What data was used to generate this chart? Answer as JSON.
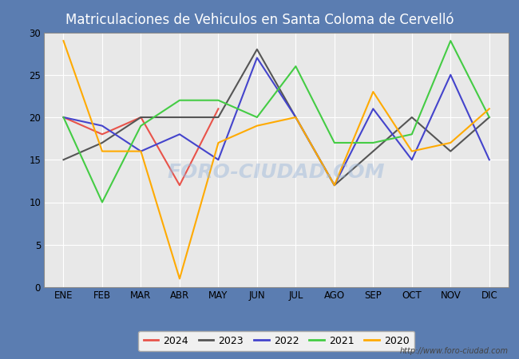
{
  "title": "Matriculaciones de Vehiculos en Santa Coloma de Cervelló",
  "months": [
    "ENE",
    "FEB",
    "MAR",
    "ABR",
    "MAY",
    "JUN",
    "JUL",
    "AGO",
    "SEP",
    "OCT",
    "NOV",
    "DIC"
  ],
  "series": {
    "2024": [
      20,
      18,
      20,
      12,
      21,
      null,
      null,
      null,
      null,
      null,
      null,
      null
    ],
    "2023": [
      15,
      17,
      20,
      20,
      20,
      28,
      20,
      12,
      16,
      20,
      16,
      20
    ],
    "2022": [
      20,
      19,
      16,
      18,
      15,
      27,
      20,
      12,
      21,
      15,
      25,
      15
    ],
    "2021": [
      20,
      10,
      19,
      22,
      22,
      20,
      26,
      17,
      17,
      18,
      29,
      20
    ],
    "2020": [
      29,
      16,
      16,
      1,
      17,
      19,
      20,
      12,
      23,
      16,
      17,
      21
    ]
  },
  "colors": {
    "2024": "#e8534a",
    "2023": "#555555",
    "2022": "#4444cc",
    "2021": "#44cc44",
    "2020": "#ffaa00"
  },
  "ylim": [
    0,
    30
  ],
  "yticks": [
    0,
    5,
    10,
    15,
    20,
    25,
    30
  ],
  "title_bg_color": "#5b7db1",
  "title_text_color": "#ffffff",
  "fig_bg_color": "#5b7db1",
  "plot_bg_color": "#e8e8e8",
  "grid_color": "#ffffff",
  "watermark": "FORO-CIUDAD.COM",
  "url": "http://www.foro-ciudad.com",
  "legend_border_color": "#aaaaaa",
  "title_fontsize": 12
}
